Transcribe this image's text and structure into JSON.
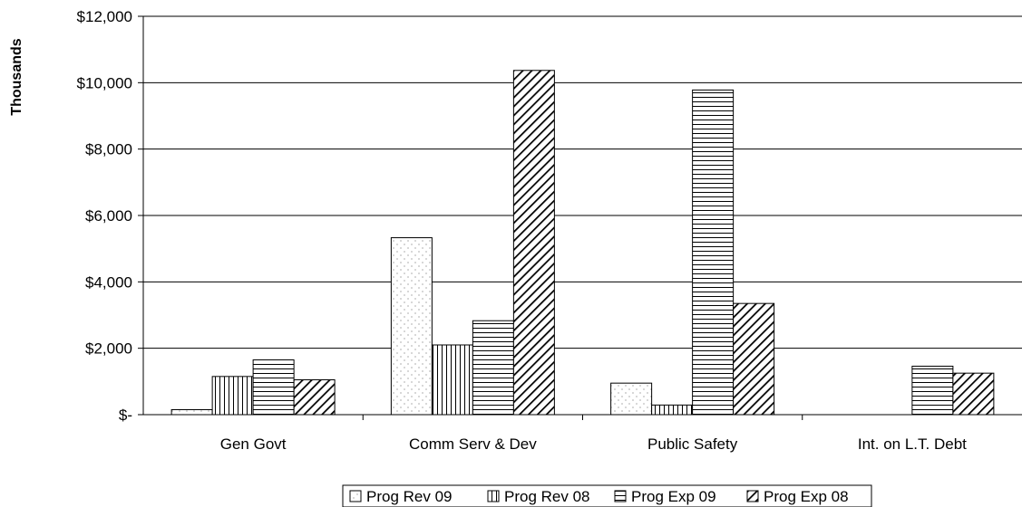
{
  "chart_data": {
    "type": "bar",
    "ylabel": "Thousands",
    "xlabel": "",
    "ylim": [
      0,
      12000
    ],
    "yticks": [
      0,
      2000,
      4000,
      6000,
      8000,
      10000,
      12000
    ],
    "ytick_labels": [
      "$-",
      "$2,000",
      "$4,000",
      "$6,000",
      "$8,000",
      "$10,000",
      "$12,000"
    ],
    "grid": true,
    "legend_position": "bottom",
    "categories": [
      "Gen Govt",
      "Comm Serv & Dev",
      "Public Safety",
      "Int. on L.T. Debt"
    ],
    "series": [
      {
        "name": "Prog Rev 09",
        "pattern": "dots",
        "values": [
          150,
          5330,
          950,
          0
        ]
      },
      {
        "name": "Prog Rev 08",
        "pattern": "vertical",
        "values": [
          1150,
          2100,
          290,
          0
        ]
      },
      {
        "name": "Prog Exp 09",
        "pattern": "horizontal",
        "values": [
          1650,
          2830,
          9780,
          1460
        ]
      },
      {
        "name": "Prog Exp 08",
        "pattern": "diagonal",
        "values": [
          1050,
          10370,
          3350,
          1250
        ]
      }
    ]
  },
  "colors": {
    "bar_fill": "#ffffff",
    "stroke": "#000000",
    "grid": "#000000"
  }
}
